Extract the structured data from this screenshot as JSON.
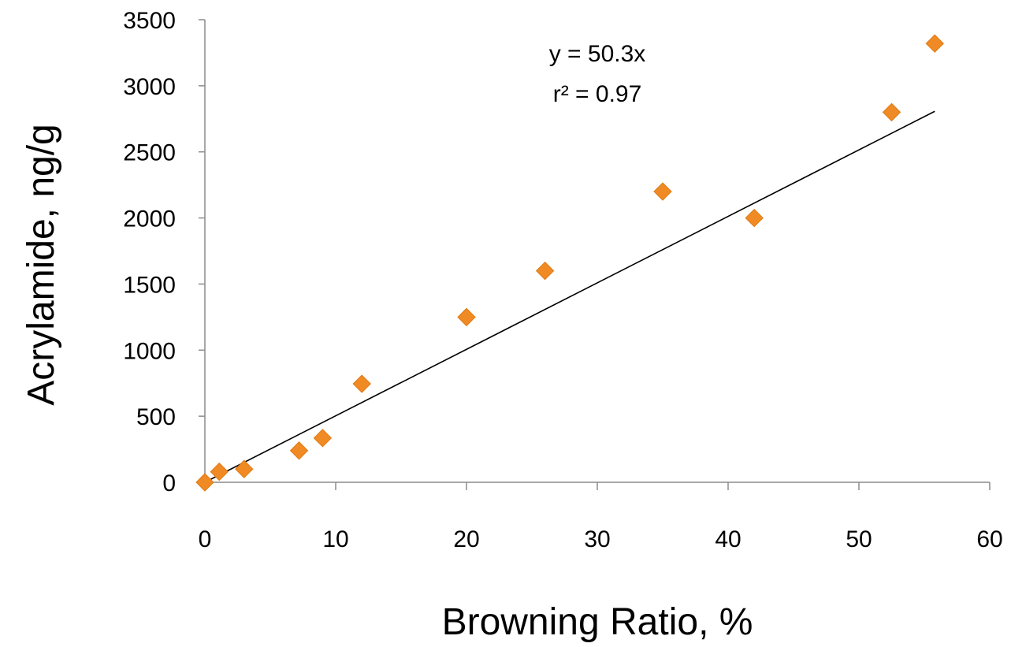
{
  "chart_data": {
    "type": "scatter",
    "title": "",
    "xlabel": "Browning Ratio, %",
    "ylabel": "Acrylamide, ng/g",
    "xlim": [
      0,
      60
    ],
    "ylim": [
      0,
      3500
    ],
    "xticks": [
      0,
      10,
      20,
      30,
      40,
      50,
      60
    ],
    "yticks": [
      0,
      500,
      1000,
      1500,
      2000,
      2500,
      3000,
      3500
    ],
    "grid": false,
    "legend": "none",
    "marker": "diamond",
    "marker_color": "#F08A24",
    "series": [
      {
        "points": [
          {
            "x": 0,
            "y": 0
          },
          {
            "x": 1.1,
            "y": 80
          },
          {
            "x": 3,
            "y": 100
          },
          {
            "x": 7.2,
            "y": 240
          },
          {
            "x": 9,
            "y": 335
          },
          {
            "x": 12,
            "y": 745
          },
          {
            "x": 20,
            "y": 1250
          },
          {
            "x": 26,
            "y": 1600
          },
          {
            "x": 35,
            "y": 2200
          },
          {
            "x": 42,
            "y": 2000
          },
          {
            "x": 52.5,
            "y": 2800
          },
          {
            "x": 55.8,
            "y": 3320
          }
        ]
      }
    ],
    "trendline": {
      "type": "linear",
      "slope": 50.3,
      "intercept": 0,
      "x_range": [
        0,
        55.8
      ],
      "color": "#000000"
    },
    "annotations": [
      "y = 50.3x",
      "r² = 0.97"
    ]
  }
}
